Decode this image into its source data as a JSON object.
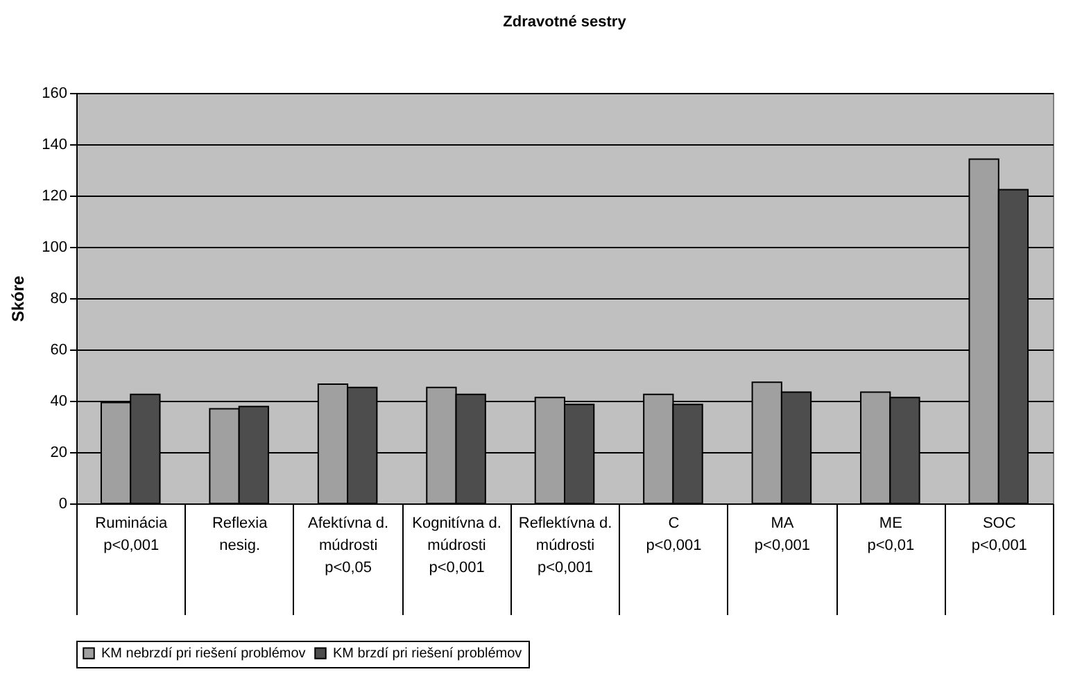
{
  "chart_data": {
    "type": "bar",
    "title": "Zdravotné sestry",
    "ylabel": "Skóre",
    "categories": [
      "Ruminácia\n\n\np<0,001",
      "Reflexia\n\n\nnesig.",
      "Afektívna d.\nmúdrosti\n\np<0,05",
      "Kognitívna d.\nmúdrosti\n\np<0,001",
      "Reflektívna d.\nmúdrosti\n\np<0,001",
      "C\n\n\np<0,001",
      "MA\n\n\np<0,001",
      "ME\n\n\np<0,01",
      "SOC\n\n\np<0,001"
    ],
    "series": [
      {
        "name": "KM nebrzdí pri riešení problémov",
        "color": "#a0a0a0",
        "values": [
          39.3,
          36.9,
          46.5,
          45.2,
          41.3,
          42.5,
          47.2,
          43.4,
          134.2
        ]
      },
      {
        "name": "KM brzdí pri riešení problémov",
        "color": "#4d4d4d",
        "values": [
          42.5,
          37.8,
          45.2,
          42.5,
          38.6,
          38.6,
          43.4,
          41.3,
          122.3
        ]
      }
    ],
    "ylim": [
      0,
      160
    ],
    "yticks": [
      0,
      20,
      40,
      60,
      80,
      100,
      120,
      140,
      160
    ],
    "grid": "y",
    "legend": "bottom"
  }
}
